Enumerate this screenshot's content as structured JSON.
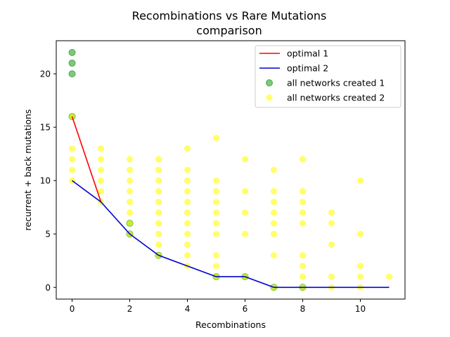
{
  "chart_data": {
    "type": "scatter",
    "title": "Recombinations vs Rare Mutations",
    "subtitle": "comparison",
    "xlabel": "Recombinations",
    "ylabel": "recurrent + back mutations",
    "xlim": [
      -0.55,
      11.55
    ],
    "ylim": [
      -1.1,
      23.1
    ],
    "xticks": [
      0,
      2,
      4,
      6,
      8,
      10
    ],
    "yticks": [
      0,
      5,
      10,
      15,
      20
    ],
    "grid": false,
    "legend_position": "top-right",
    "colors": {
      "optimal1": "#ff0000",
      "optimal2": "#0000cc",
      "networks1": "#2ca02c",
      "networks2": "#ffff00"
    },
    "lines": [
      {
        "name": "optimal 1",
        "x": [
          0,
          1
        ],
        "y": [
          16,
          8
        ]
      },
      {
        "name": "optimal 2",
        "x": [
          0,
          1,
          2,
          3,
          4,
          5,
          6,
          7,
          8,
          9,
          10,
          11
        ],
        "y": [
          10,
          8,
          5,
          3,
          2,
          1,
          1,
          0,
          0,
          0,
          0,
          0
        ]
      }
    ],
    "scatter": [
      {
        "name": "all networks created 1",
        "points": [
          [
            0,
            22
          ],
          [
            0,
            21
          ],
          [
            0,
            20
          ],
          [
            0,
            16
          ],
          [
            2,
            6
          ],
          [
            2,
            5
          ],
          [
            3,
            3
          ],
          [
            5,
            1
          ],
          [
            6,
            1
          ],
          [
            7,
            0
          ],
          [
            8,
            0
          ]
        ]
      },
      {
        "name": "all networks created 2",
        "points": [
          [
            0,
            16
          ],
          [
            0,
            13
          ],
          [
            0,
            12
          ],
          [
            0,
            11
          ],
          [
            0,
            10
          ],
          [
            1,
            13
          ],
          [
            1,
            12
          ],
          [
            1,
            11
          ],
          [
            1,
            10
          ],
          [
            1,
            9
          ],
          [
            1,
            8
          ],
          [
            2,
            12
          ],
          [
            2,
            11
          ],
          [
            2,
            10
          ],
          [
            2,
            9
          ],
          [
            2,
            8
          ],
          [
            2,
            7
          ],
          [
            2,
            6
          ],
          [
            2,
            5
          ],
          [
            3,
            12
          ],
          [
            3,
            11
          ],
          [
            3,
            10
          ],
          [
            3,
            9
          ],
          [
            3,
            8
          ],
          [
            3,
            7
          ],
          [
            3,
            6
          ],
          [
            3,
            5
          ],
          [
            3,
            4
          ],
          [
            3,
            3
          ],
          [
            4,
            13
          ],
          [
            4,
            11
          ],
          [
            4,
            10
          ],
          [
            4,
            9
          ],
          [
            4,
            8
          ],
          [
            4,
            7
          ],
          [
            4,
            6
          ],
          [
            4,
            5
          ],
          [
            4,
            4
          ],
          [
            4,
            3
          ],
          [
            4,
            2
          ],
          [
            5,
            14
          ],
          [
            5,
            10
          ],
          [
            5,
            9
          ],
          [
            5,
            8
          ],
          [
            5,
            7
          ],
          [
            5,
            6
          ],
          [
            5,
            5
          ],
          [
            5,
            3
          ],
          [
            5,
            2
          ],
          [
            5,
            1
          ],
          [
            6,
            12
          ],
          [
            6,
            9
          ],
          [
            6,
            7
          ],
          [
            6,
            5
          ],
          [
            6,
            1
          ],
          [
            7,
            11
          ],
          [
            7,
            9
          ],
          [
            7,
            8
          ],
          [
            7,
            7
          ],
          [
            7,
            6
          ],
          [
            7,
            5
          ],
          [
            7,
            3
          ],
          [
            7,
            0
          ],
          [
            8,
            12
          ],
          [
            8,
            9
          ],
          [
            8,
            8
          ],
          [
            8,
            7
          ],
          [
            8,
            6
          ],
          [
            8,
            3
          ],
          [
            8,
            2
          ],
          [
            8,
            1
          ],
          [
            8,
            0
          ],
          [
            9,
            7
          ],
          [
            9,
            6
          ],
          [
            9,
            4
          ],
          [
            9,
            1
          ],
          [
            9,
            0
          ],
          [
            10,
            10
          ],
          [
            10,
            5
          ],
          [
            10,
            2
          ],
          [
            10,
            1
          ],
          [
            10,
            0
          ],
          [
            11,
            1
          ]
        ]
      }
    ],
    "legend": [
      "optimal 1",
      "optimal 2",
      "all networks created 1",
      "all networks created 2"
    ]
  }
}
